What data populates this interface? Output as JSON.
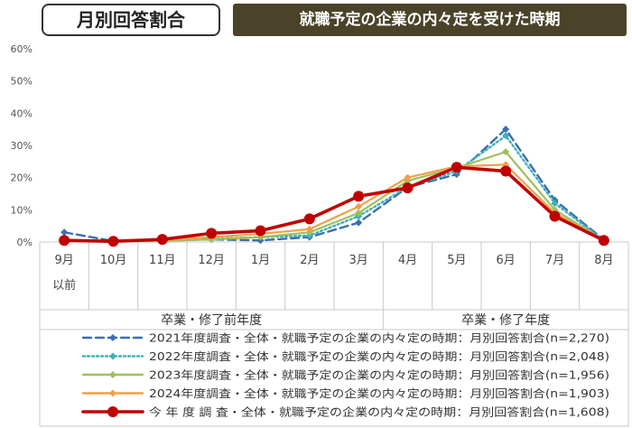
{
  "header": {
    "badge": "月別回答割合",
    "title": "就職予定の企業の内々定を受けた時期"
  },
  "chart_data": {
    "type": "line",
    "categories": [
      "9月",
      "10月",
      "11月",
      "12月",
      "1月",
      "2月",
      "3月",
      "4月",
      "5月",
      "6月",
      "7月",
      "8月"
    ],
    "category_sublabels": [
      "以前",
      "",
      "",
      "",
      "",
      "",
      "",
      "",
      "",
      "",
      "",
      ""
    ],
    "groups": [
      {
        "label": "卒業・修了前年度",
        "span": [
          0,
          6
        ]
      },
      {
        "label": "卒業・修了年度",
        "span": [
          7,
          11
        ]
      }
    ],
    "ylim": [
      0,
      60
    ],
    "yticks": [
      0,
      10,
      20,
      30,
      40,
      50,
      60
    ],
    "ytick_labels": [
      "0%",
      "10%",
      "20%",
      "30%",
      "40%",
      "50%",
      "60%"
    ],
    "grid": false,
    "legend_position": "bottom",
    "series": [
      {
        "name": "2021年度調査・全体・就職予定の企業の内々定の時期：月別回答割合(n=2,270)",
        "values": [
          3.0,
          0.3,
          0.5,
          0.8,
          0.5,
          1.5,
          6.0,
          17.0,
          21.0,
          35.0,
          13.0,
          0.7
        ],
        "color": "#3a6fb0",
        "style": "dashed",
        "marker": "diamond"
      },
      {
        "name": "2022年度調査・全体・就職予定の企業の内々定の時期：月別回答割合(n=2,048)",
        "values": [
          0.5,
          0.2,
          0.4,
          1.0,
          1.5,
          2.0,
          8.0,
          17.0,
          22.0,
          33.0,
          12.0,
          0.5
        ],
        "color": "#3fb0b8",
        "style": "dotted",
        "marker": "diamond"
      },
      {
        "name": "2023年度調査・全体・就職予定の企業の内々定の時期：月別回答割合(n=1,956)",
        "values": [
          0.3,
          0.2,
          0.3,
          0.8,
          1.5,
          3.0,
          9.0,
          19.0,
          23.0,
          28.0,
          10.0,
          0.5
        ],
        "color": "#9ec05c",
        "style": "solid",
        "marker": "diamond"
      },
      {
        "name": "2024年度調査・全体・就職予定の企業の内々定の時期：月別回答割合(n=1,903)",
        "values": [
          0.3,
          0.2,
          0.5,
          1.5,
          2.5,
          4.0,
          11.0,
          20.0,
          23.5,
          24.0,
          9.0,
          0.5
        ],
        "color": "#f0a04a",
        "style": "solid",
        "marker": "diamond"
      },
      {
        "name": "今 年 度 調 査・全体・就職予定の企業の内々定の時期：月別回答割合(n=1,608)",
        "values": [
          0.5,
          0.2,
          0.8,
          2.7,
          3.5,
          7.2,
          14.2,
          16.8,
          23.2,
          22.0,
          8.0,
          0.5
        ],
        "color": "#c00000",
        "style": "solid",
        "marker": "circle"
      }
    ]
  }
}
